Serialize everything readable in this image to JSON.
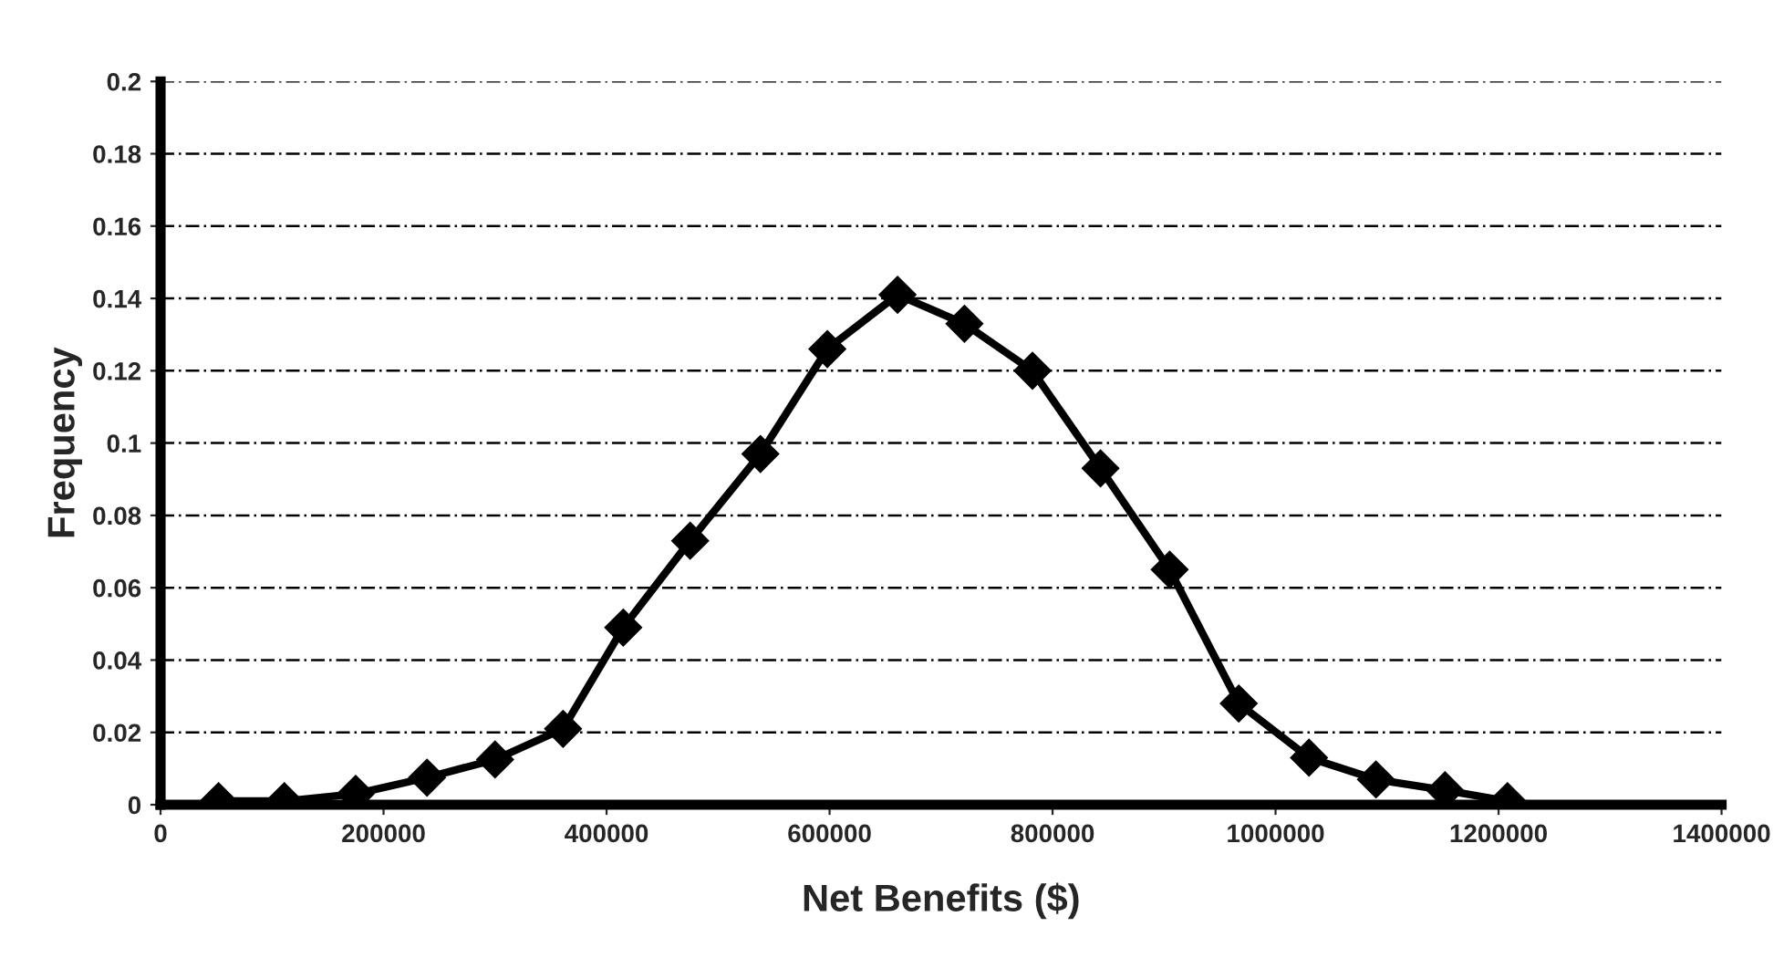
{
  "chart_data": {
    "type": "line",
    "xlabel": "Net Benefits ($)",
    "ylabel": "Frequency",
    "x": [
      52000,
      111000,
      175000,
      239000,
      300000,
      361000,
      415000,
      475000,
      538000,
      598000,
      661000,
      721000,
      782000,
      843000,
      905000,
      967000,
      1030000,
      1090000,
      1152000,
      1208000
    ],
    "series": [
      {
        "color": "#000000",
        "values": [
          0.001,
          0.001,
          0.003,
          0.0075,
          0.0125,
          0.021,
          0.049,
          0.073,
          0.097,
          0.126,
          0.141,
          0.133,
          0.12,
          0.093,
          0.065,
          0.028,
          0.013,
          0.007,
          0.004,
          0.001
        ]
      }
    ],
    "xlim": [
      0,
      1400000
    ],
    "xticks": [
      0,
      200000,
      400000,
      600000,
      800000,
      1000000,
      1200000,
      1400000
    ],
    "ylim": [
      0,
      0.2
    ],
    "yticks": [
      0,
      0.02,
      0.04,
      0.06,
      0.08,
      0.1,
      0.12,
      0.14,
      0.16,
      0.18,
      0.2
    ],
    "grid": "y",
    "marker": "diamond",
    "line_style": "solid"
  }
}
